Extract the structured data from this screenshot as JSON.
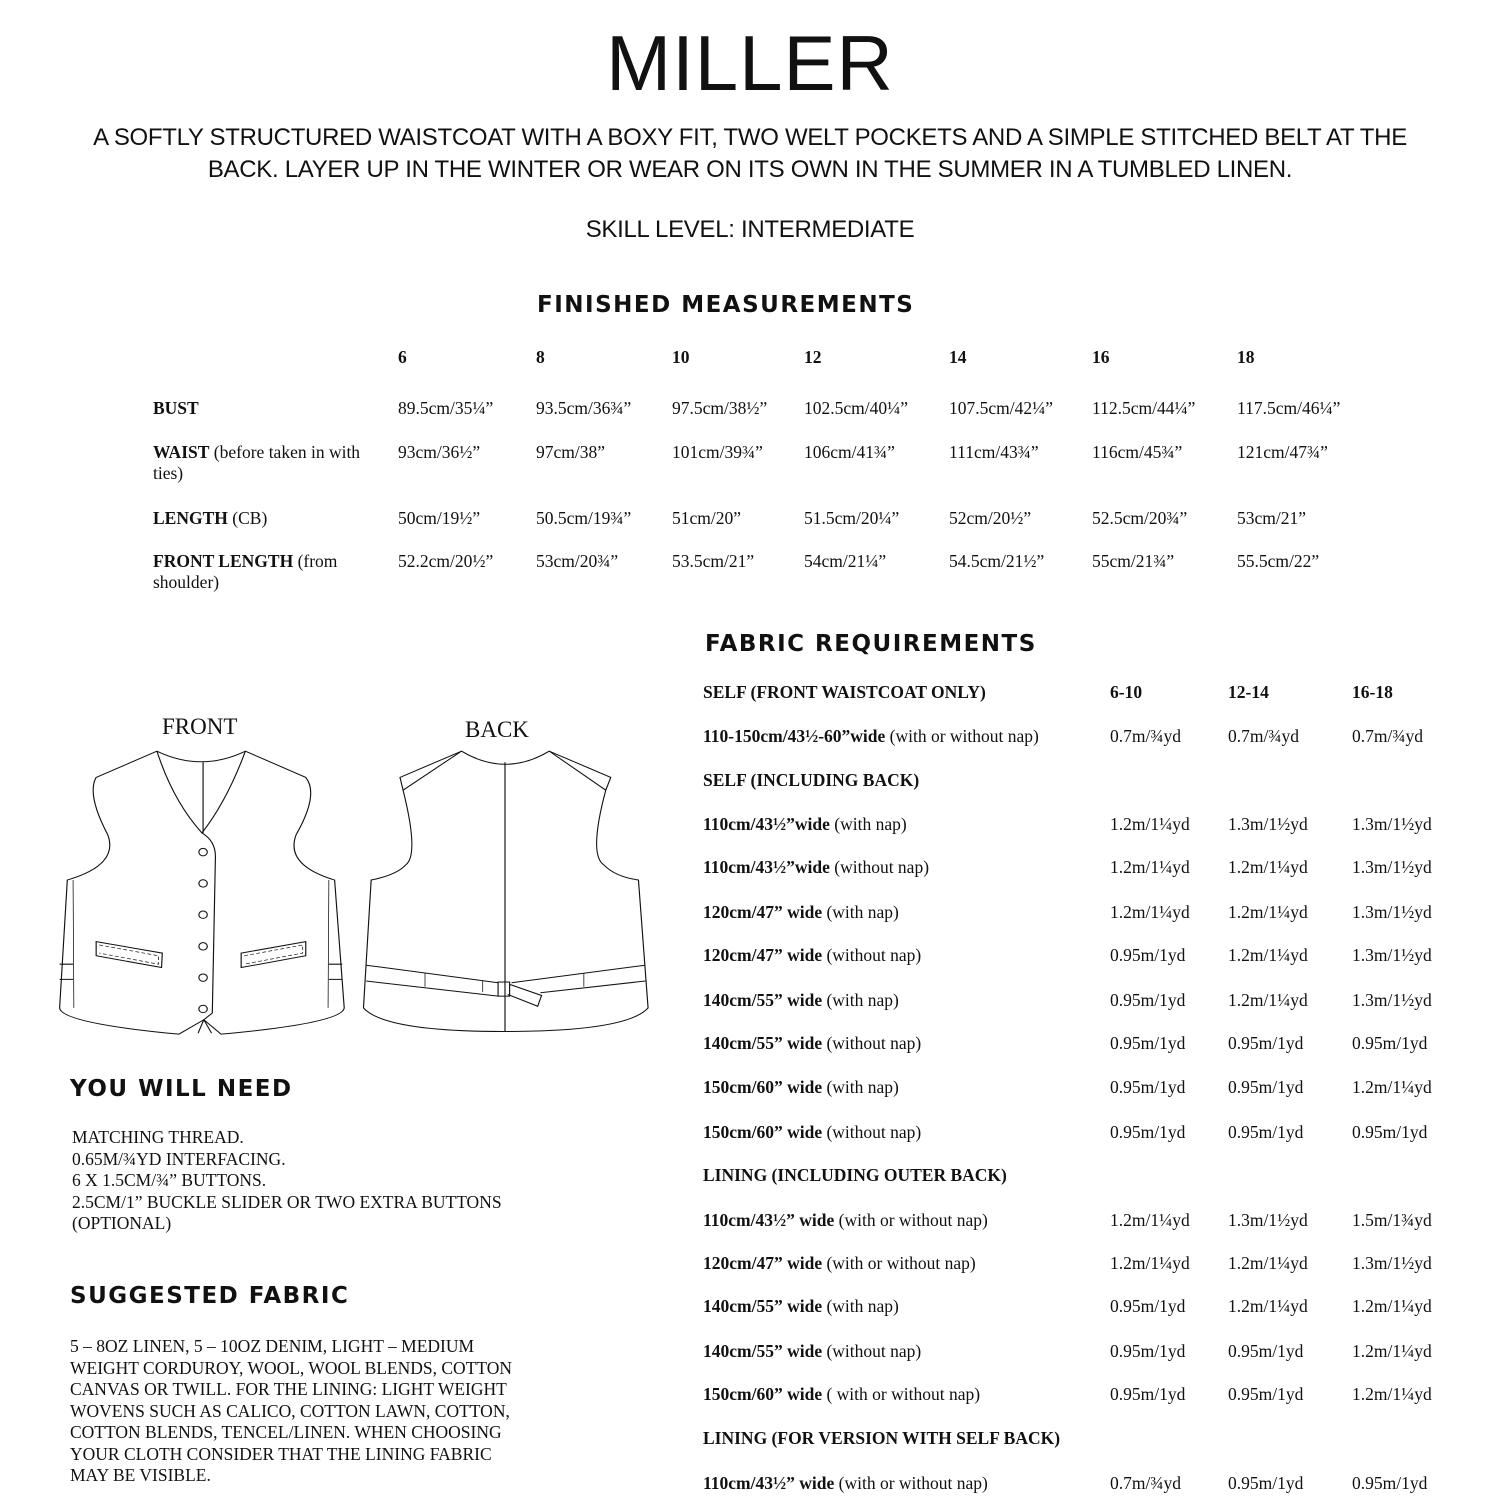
{
  "title": "MILLER",
  "description": [
    "A SOFTLY STRUCTURED WAISTCOAT WITH A BOXY FIT, TWO WELT POCKETS AND A SIMPLE STITCHED BELT AT THE",
    "BACK. LAYER UP IN THE WINTER OR WEAR ON ITS OWN IN THE SUMMER IN A TUMBLED LINEN."
  ],
  "skill_level": "SKILL LEVEL:  INTERMEDIATE",
  "finished_measurements": {
    "heading": "FINISHED MEASUREMENTS",
    "sizes": [
      "6",
      "8",
      "10",
      "12",
      "14",
      "16",
      "18"
    ],
    "rows": [
      {
        "label": "BUST",
        "note": "",
        "values": [
          "89.5cm/35¼”",
          "93.5cm/36¾”",
          "97.5cm/38½”",
          "102.5cm/40¼”",
          "107.5cm/42¼”",
          "112.5cm/44¼”",
          "117.5cm/46¼”"
        ]
      },
      {
        "label": "WAIST",
        "note": " (before taken in with",
        "note2": "ties)",
        "values": [
          "93cm/36½”",
          "97cm/38”",
          "101cm/39¾”",
          "106cm/41¾”",
          "111cm/43¾”",
          "116cm/45¾”",
          "121cm/47¾”"
        ]
      },
      {
        "label": "LENGTH",
        "note": " (CB)",
        "values": [
          "50cm/19½”",
          "50.5cm/19¾”",
          "51cm/20”",
          "51.5cm/20¼”",
          "52cm/20½”",
          "52.5cm/20¾”",
          "53cm/21”"
        ]
      },
      {
        "label": "FRONT LENGTH",
        "note": " (from",
        "note2": "shoulder)",
        "values": [
          "52.2cm/20½”",
          "53cm/20¾”",
          "53.5cm/21”",
          "54cm/21¼”",
          "54.5cm/21½”",
          "55cm/21¾”",
          "55.5cm/22”"
        ]
      }
    ]
  },
  "illustration": {
    "front_label": "FRONT",
    "back_label": "BACK"
  },
  "you_will_need": {
    "heading": "YOU WILL NEED",
    "items": [
      "MATCHING THREAD.",
      "0.65M/¾YD INTERFACING.",
      "6 X 1.5CM/¾” BUTTONS.",
      "2.5CM/1” BUCKLE SLIDER OR TWO EXTRA BUTTONS",
      "(OPTIONAL)"
    ]
  },
  "suggested_fabric": {
    "heading": "SUGGESTED FABRIC",
    "lines": [
      "5 – 8OZ LINEN, 5 – 10OZ DENIM, LIGHT – MEDIUM",
      "WEIGHT CORDUROY, WOOL, WOOL BLENDS, COTTON",
      "CANVAS OR TWILL. FOR THE LINING: LIGHT WEIGHT",
      "WOVENS SUCH AS CALICO, COTTON LAWN, COTTON,",
      "COTTON BLENDS, TENCEL/LINEN. WHEN CHOOSING",
      "YOUR CLOTH CONSIDER THAT THE LINING FABRIC",
      "MAY BE VISIBLE."
    ]
  },
  "fabric_requirements": {
    "heading": "FABRIC REQUIREMENTS",
    "rows": [
      {
        "type": "section",
        "label": "SELF (FRONT WAISTCOAT ONLY)",
        "values": [
          "6-10",
          "12-14",
          "16-18"
        ]
      },
      {
        "type": "row",
        "label": "110-150cm/43½-60”wide",
        "note": " (with or without nap)",
        "values": [
          "0.7m/¾yd",
          "0.7m/¾yd",
          "0.7m/¾yd"
        ]
      },
      {
        "type": "section",
        "label": "SELF (INCLUDING BACK)",
        "values": []
      },
      {
        "type": "row",
        "label": "110cm/43½”wide",
        "note": " (with nap)",
        "values": [
          "1.2m/1¼yd",
          "1.3m/1½yd",
          "1.3m/1½yd"
        ]
      },
      {
        "type": "row",
        "label": "110cm/43½”wide",
        "note": " (without nap)",
        "values": [
          "1.2m/1¼yd",
          "1.2m/1¼yd",
          "1.3m/1½yd"
        ]
      },
      {
        "type": "row",
        "label": "120cm/47” wide",
        "note": " (with nap)",
        "values": [
          "1.2m/1¼yd",
          "1.2m/1¼yd",
          "1.3m/1½yd"
        ]
      },
      {
        "type": "row",
        "label": "120cm/47” wide",
        "note": " (without nap)",
        "values": [
          "0.95m/1yd",
          "1.2m/1¼yd",
          "1.3m/1½yd"
        ]
      },
      {
        "type": "row",
        "label": "140cm/55” wide",
        "note": " (with nap)",
        "values": [
          "0.95m/1yd",
          "1.2m/1¼yd",
          "1.3m/1½yd"
        ]
      },
      {
        "type": "row",
        "label": "140cm/55” wide",
        "note": " (without nap)",
        "values": [
          "0.95m/1yd",
          "0.95m/1yd",
          "0.95m/1yd"
        ]
      },
      {
        "type": "row",
        "label": "150cm/60” wide",
        "note": " (with nap)",
        "values": [
          "0.95m/1yd",
          "0.95m/1yd",
          "1.2m/1¼yd"
        ]
      },
      {
        "type": "row",
        "label": "150cm/60” wide",
        "note": " (without nap)",
        "values": [
          "0.95m/1yd",
          "0.95m/1yd",
          "0.95m/1yd"
        ]
      },
      {
        "type": "section",
        "label": "LINING (INCLUDING OUTER BACK)",
        "values": []
      },
      {
        "type": "row",
        "label": "110cm/43½” wide",
        "note": " (with or without nap)",
        "values": [
          "1.2m/1¼yd",
          "1.3m/1½yd",
          "1.5m/1¾yd"
        ]
      },
      {
        "type": "row",
        "label": "120cm/47” wide",
        "note": " (with or without nap)",
        "values": [
          "1.2m/1¼yd",
          "1.2m/1¼yd",
          "1.3m/1½yd"
        ]
      },
      {
        "type": "row",
        "label": "140cm/55” wide",
        "note": " (with nap)",
        "values": [
          "0.95m/1yd",
          "1.2m/1¼yd",
          "1.2m/1¼yd"
        ]
      },
      {
        "type": "row",
        "label": "140cm/55” wide",
        "note": " (without nap)",
        "values": [
          "0.95m/1yd",
          "0.95m/1yd",
          "1.2m/1¼yd"
        ]
      },
      {
        "type": "row",
        "label": "150cm/60” wide",
        "note": " ( with or without nap)",
        "values": [
          "0.95m/1yd",
          "0.95m/1yd",
          "1.2m/1¼yd"
        ]
      },
      {
        "type": "section",
        "label": "LINING (FOR VERSION WITH SELF BACK)",
        "values": []
      },
      {
        "type": "row",
        "label": "110cm/43½” wide",
        "note": " (with or without nap)",
        "values": [
          "0.7m/¾yd",
          "0.95m/1yd",
          "0.95m/1yd"
        ]
      }
    ]
  }
}
